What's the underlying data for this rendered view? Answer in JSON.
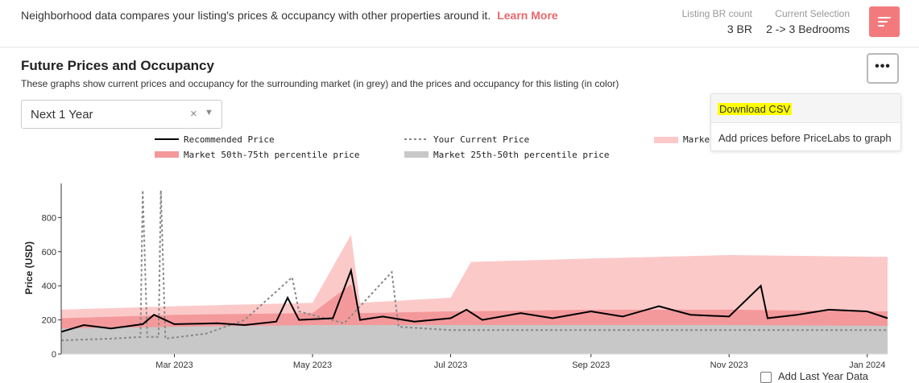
{
  "header": {
    "info_text": "Neighborhood data compares your listing's prices & occupancy with other properties around it.",
    "learn_more": "Learn More",
    "listing_br_label": "Listing BR count",
    "listing_br_value": "3 BR",
    "current_selection_label": "Current Selection",
    "current_selection_value": "2 -> 3 Bedrooms",
    "filter_icon": "filter-lines-icon"
  },
  "section": {
    "title": "Future Prices and Occupancy",
    "subtitle": "These graphs show current prices and occupancy for the surrounding market (in grey) and the prices and occupancy for this listing (in color)"
  },
  "range_select": {
    "value": "Next 1 Year",
    "clear_glyph": "×",
    "caret_glyph": "▼"
  },
  "more_menu": {
    "button_glyph": "•••",
    "items": [
      "Download CSV",
      "Add prices before PriceLabs to graph"
    ]
  },
  "add_last_year": "Add Last Year Data",
  "colors": {
    "accent": "#f27a7d",
    "recommended": "#000000",
    "current": "#888888",
    "p75_90": "#fcc9c9",
    "p50_75": "#f4999b",
    "p25_50": "#c8c8c8"
  },
  "chart_data": {
    "type": "line",
    "ylabel": "Price (USD)",
    "yticks": [
      0,
      200,
      400,
      600,
      800
    ],
    "ylim": [
      0,
      1000
    ],
    "xlim": [
      "2023-01-10",
      "2024-01-10"
    ],
    "xticks": [
      {
        "date": "2023-03-01",
        "label": "Mar 2023"
      },
      {
        "date": "2023-05-01",
        "label": "May 2023"
      },
      {
        "date": "2023-07-01",
        "label": "Jul 2023"
      },
      {
        "date": "2023-09-01",
        "label": "Sep 2023"
      },
      {
        "date": "2023-11-01",
        "label": "Nov 2023"
      },
      {
        "date": "2024-01-01",
        "label": "Jan 2024"
      }
    ],
    "legend": [
      {
        "name": "Recommended Price",
        "style": "solid"
      },
      {
        "name": "Your Current Price",
        "style": "dotted"
      },
      {
        "name": "Marke",
        "style": "band-light"
      },
      {
        "name": "Market 50th-75th percentile price",
        "style": "band-mid"
      },
      {
        "name": "Market 25th-50th percentile price",
        "style": "band-grey"
      }
    ],
    "series": [
      {
        "name": "Recommended Price",
        "points": [
          [
            "2023-01-10",
            130
          ],
          [
            "2023-01-20",
            170
          ],
          [
            "2023-02-01",
            150
          ],
          [
            "2023-02-15",
            175
          ],
          [
            "2023-02-20",
            230
          ],
          [
            "2023-03-01",
            175
          ],
          [
            "2023-03-20",
            180
          ],
          [
            "2023-04-01",
            170
          ],
          [
            "2023-04-15",
            190
          ],
          [
            "2023-04-20",
            330
          ],
          [
            "2023-04-25",
            200
          ],
          [
            "2023-05-10",
            210
          ],
          [
            "2023-05-18",
            490
          ],
          [
            "2023-05-22",
            200
          ],
          [
            "2023-06-01",
            220
          ],
          [
            "2023-06-15",
            190
          ],
          [
            "2023-07-01",
            210
          ],
          [
            "2023-07-08",
            260
          ],
          [
            "2023-07-15",
            200
          ],
          [
            "2023-08-01",
            240
          ],
          [
            "2023-08-15",
            210
          ],
          [
            "2023-09-01",
            250
          ],
          [
            "2023-09-15",
            220
          ],
          [
            "2023-10-01",
            280
          ],
          [
            "2023-10-15",
            230
          ],
          [
            "2023-11-01",
            220
          ],
          [
            "2023-11-15",
            400
          ],
          [
            "2023-11-18",
            210
          ],
          [
            "2023-12-01",
            230
          ],
          [
            "2023-12-15",
            260
          ],
          [
            "2024-01-01",
            250
          ],
          [
            "2024-01-10",
            210
          ]
        ]
      },
      {
        "name": "Your Current Price",
        "points": [
          [
            "2023-01-10",
            80
          ],
          [
            "2023-02-01",
            90
          ],
          [
            "2023-02-14",
            100
          ],
          [
            "2023-02-15",
            960
          ],
          [
            "2023-02-17",
            100
          ],
          [
            "2023-02-22",
            100
          ],
          [
            "2023-02-23",
            960
          ],
          [
            "2023-02-25",
            90
          ],
          [
            "2023-03-15",
            120
          ],
          [
            "2023-04-01",
            200
          ],
          [
            "2023-04-22",
            450
          ],
          [
            "2023-04-25",
            250
          ],
          [
            "2023-05-15",
            180
          ],
          [
            "2023-06-05",
            480
          ],
          [
            "2023-06-08",
            160
          ],
          [
            "2023-07-01",
            140
          ],
          [
            "2023-09-01",
            140
          ],
          [
            "2023-11-01",
            140
          ],
          [
            "2024-01-10",
            140
          ]
        ]
      },
      {
        "name": "Marke",
        "points": [
          [
            "2023-01-10",
            260
          ],
          [
            "2023-03-01",
            280
          ],
          [
            "2023-05-01",
            300
          ],
          [
            "2023-05-18",
            700
          ],
          [
            "2023-05-22",
            300
          ],
          [
            "2023-07-01",
            330
          ],
          [
            "2023-07-10",
            540
          ],
          [
            "2023-09-01",
            560
          ],
          [
            "2023-11-01",
            580
          ],
          [
            "2024-01-10",
            570
          ]
        ]
      },
      {
        "name": "Market 50th-75th percentile price",
        "points": [
          [
            "2023-01-10",
            210
          ],
          [
            "2023-03-01",
            230
          ],
          [
            "2023-05-01",
            240
          ],
          [
            "2023-05-18",
            410
          ],
          [
            "2023-05-22",
            240
          ],
          [
            "2023-07-01",
            250
          ],
          [
            "2023-09-01",
            260
          ],
          [
            "2023-11-01",
            260
          ],
          [
            "2024-01-10",
            250
          ]
        ]
      },
      {
        "name": "Market 25th-50th percentile price",
        "points": [
          [
            "2023-01-10",
            150
          ],
          [
            "2023-03-01",
            160
          ],
          [
            "2023-05-01",
            170
          ],
          [
            "2023-07-01",
            170
          ],
          [
            "2023-09-01",
            170
          ],
          [
            "2023-11-01",
            170
          ],
          [
            "2024-01-10",
            165
          ]
        ]
      }
    ]
  }
}
